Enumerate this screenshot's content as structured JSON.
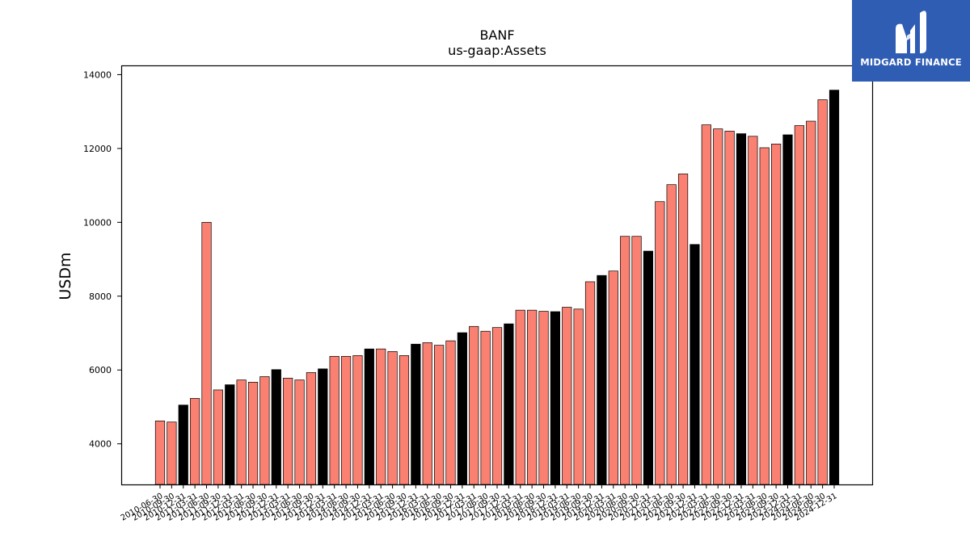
{
  "brand": {
    "name": "MIDGARD FINANCE",
    "bg_color": "#2f5db4"
  },
  "chart_data": {
    "type": "bar",
    "title": "BANF",
    "subtitle": "us-gaap:Assets",
    "ylabel": "USDm",
    "xlabel": "",
    "ylim": [
      2900,
      14250
    ],
    "yticks": [
      4000,
      6000,
      8000,
      10000,
      12000,
      14000
    ],
    "colors": {
      "quarterly": "#fa8072",
      "annual": "#000000"
    },
    "categories": [
      "2010-06-30",
      "2010-09-30",
      "2010-12-31",
      "2011-03-31",
      "2011-06-30",
      "2011-09-30",
      "2011-12-31",
      "2012-03-31",
      "2012-06-30",
      "2012-09-30",
      "2012-12-31",
      "2013-03-31",
      "2013-06-30",
      "2013-09-30",
      "2013-12-31",
      "2014-03-31",
      "2014-06-30",
      "2014-09-30",
      "2014-12-31",
      "2015-03-31",
      "2015-06-30",
      "2015-09-30",
      "2015-12-31",
      "2016-03-31",
      "2016-06-30",
      "2016-09-30",
      "2016-12-31",
      "2017-03-31",
      "2017-06-30",
      "2017-09-30",
      "2017-12-31",
      "2018-03-31",
      "2018-06-30",
      "2018-09-30",
      "2018-12-31",
      "2019-03-31",
      "2019-06-30",
      "2019-09-30",
      "2019-12-31",
      "2020-03-31",
      "2020-06-30",
      "2020-09-30",
      "2020-12-31",
      "2021-03-31",
      "2021-06-30",
      "2021-09-30",
      "2021-12-31",
      "2022-03-31",
      "2022-06-30",
      "2022-09-30",
      "2022-12-31",
      "2023-03-31",
      "2023-06-30",
      "2023-09-30",
      "2023-12-31",
      "2024-03-31",
      "2024-06-30",
      "2024-09-30",
      "2024-12-31"
    ],
    "values": [
      4620,
      4590,
      5050,
      5230,
      10000,
      5460,
      5600,
      5730,
      5670,
      5820,
      6010,
      5780,
      5730,
      5930,
      6030,
      6370,
      6370,
      6390,
      6570,
      6570,
      6500,
      6390,
      6700,
      6740,
      6670,
      6790,
      7010,
      7180,
      7050,
      7150,
      7250,
      7620,
      7620,
      7590,
      7580,
      7700,
      7650,
      8390,
      8560,
      8680,
      9620,
      9620,
      9220,
      10560,
      11020,
      11310,
      9400,
      12640,
      12530,
      12470,
      12400,
      12330,
      12020,
      12120,
      12370,
      12620,
      12740,
      13320,
      13580
    ],
    "annual": [
      false,
      false,
      true,
      false,
      false,
      false,
      true,
      false,
      false,
      false,
      true,
      false,
      false,
      false,
      true,
      false,
      false,
      false,
      true,
      false,
      false,
      false,
      true,
      false,
      false,
      false,
      true,
      false,
      false,
      false,
      true,
      false,
      false,
      false,
      true,
      false,
      false,
      false,
      true,
      false,
      false,
      false,
      true,
      false,
      false,
      false,
      true,
      false,
      false,
      false,
      true,
      false,
      false,
      false,
      true,
      false,
      false,
      false,
      true
    ],
    "grid": false,
    "legend": "none"
  }
}
